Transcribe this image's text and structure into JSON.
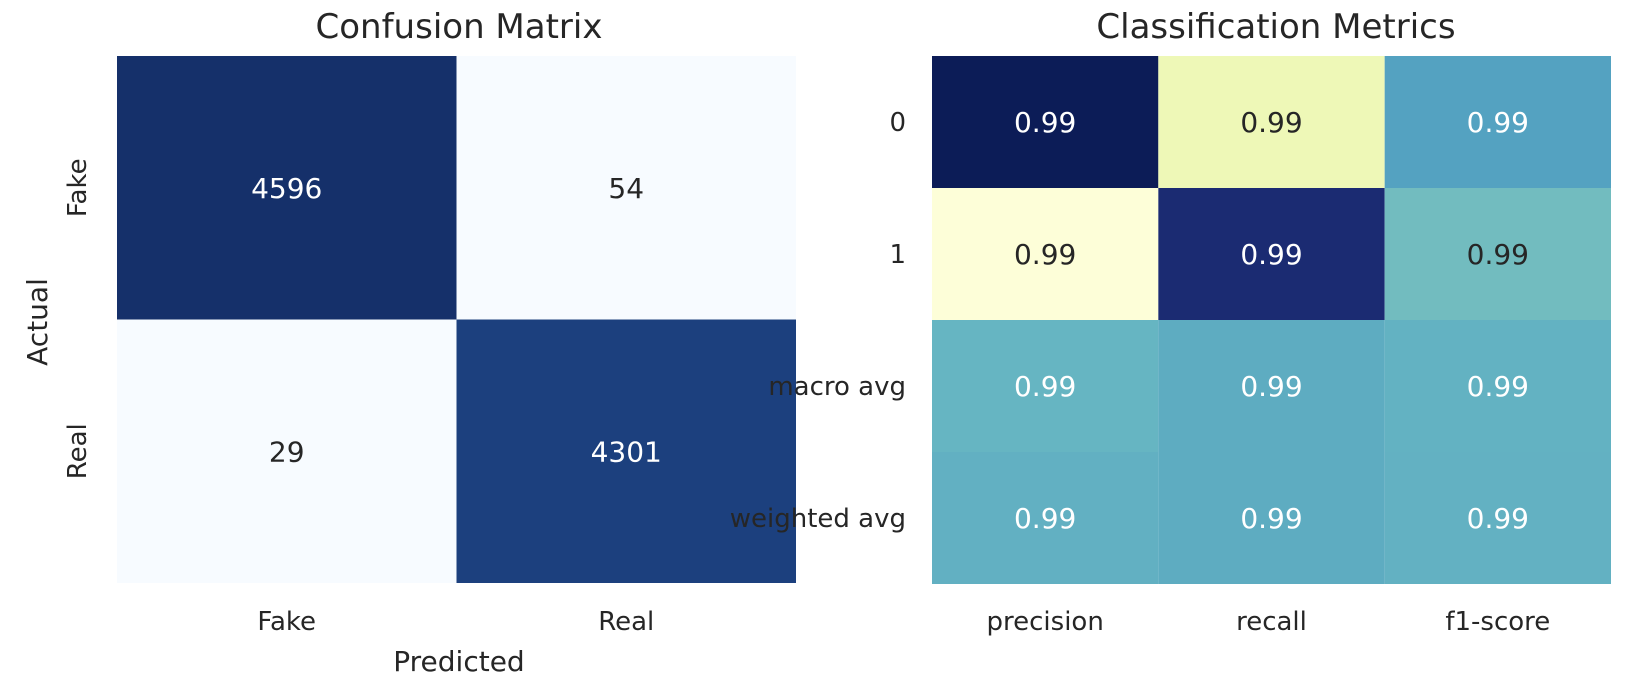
{
  "chart_data": [
    {
      "type": "heatmap",
      "title": "Confusion Matrix",
      "xlabel": "Predicted",
      "ylabel": "Actual",
      "x_categories": [
        "Fake",
        "Real"
      ],
      "y_categories": [
        "Fake",
        "Real"
      ],
      "values": [
        [
          4596,
          54
        ],
        [
          29,
          4301
        ]
      ],
      "colormap": "Blues",
      "colors": [
        [
          "#15306a",
          "#f7fbff"
        ],
        [
          "#f7fbff",
          "#1c407e"
        ]
      ],
      "grid": false,
      "legend": "none"
    },
    {
      "type": "heatmap",
      "title": "Classification Metrics",
      "xlabel": "",
      "ylabel": "",
      "x_categories": [
        "precision",
        "recall",
        "f1-score"
      ],
      "y_categories": [
        "0",
        "1",
        "macro avg",
        "weighted avg"
      ],
      "values": [
        [
          0.99,
          0.99,
          0.99
        ],
        [
          0.99,
          0.99,
          0.99
        ],
        [
          0.99,
          0.99,
          0.99
        ],
        [
          0.99,
          0.99,
          0.99
        ]
      ],
      "labels": [
        [
          "0.99",
          "0.99",
          "0.99"
        ],
        [
          "0.99",
          "0.99",
          "0.99"
        ],
        [
          "0.99",
          "0.99",
          "0.99"
        ],
        [
          "0.99",
          "0.99",
          "0.99"
        ]
      ],
      "colormap": "YlGnBu",
      "colors": [
        [
          "#0c1c57",
          "#eef8b7",
          "#54a2c1"
        ],
        [
          "#fdfed8",
          "#1b2b72",
          "#72bcbf"
        ],
        [
          "#66b5c2",
          "#5eacc1",
          "#63b2c2"
        ],
        [
          "#62b0c2",
          "#5eacc1",
          "#63b1c2"
        ]
      ],
      "text_colors": [
        [
          "#ffffff",
          "#262626",
          "#ffffff"
        ],
        [
          "#262626",
          "#ffffff",
          "#262626"
        ],
        [
          "#ffffff",
          "#ffffff",
          "#ffffff"
        ],
        [
          "#ffffff",
          "#ffffff",
          "#ffffff"
        ]
      ],
      "grid": false,
      "legend": "none"
    }
  ]
}
